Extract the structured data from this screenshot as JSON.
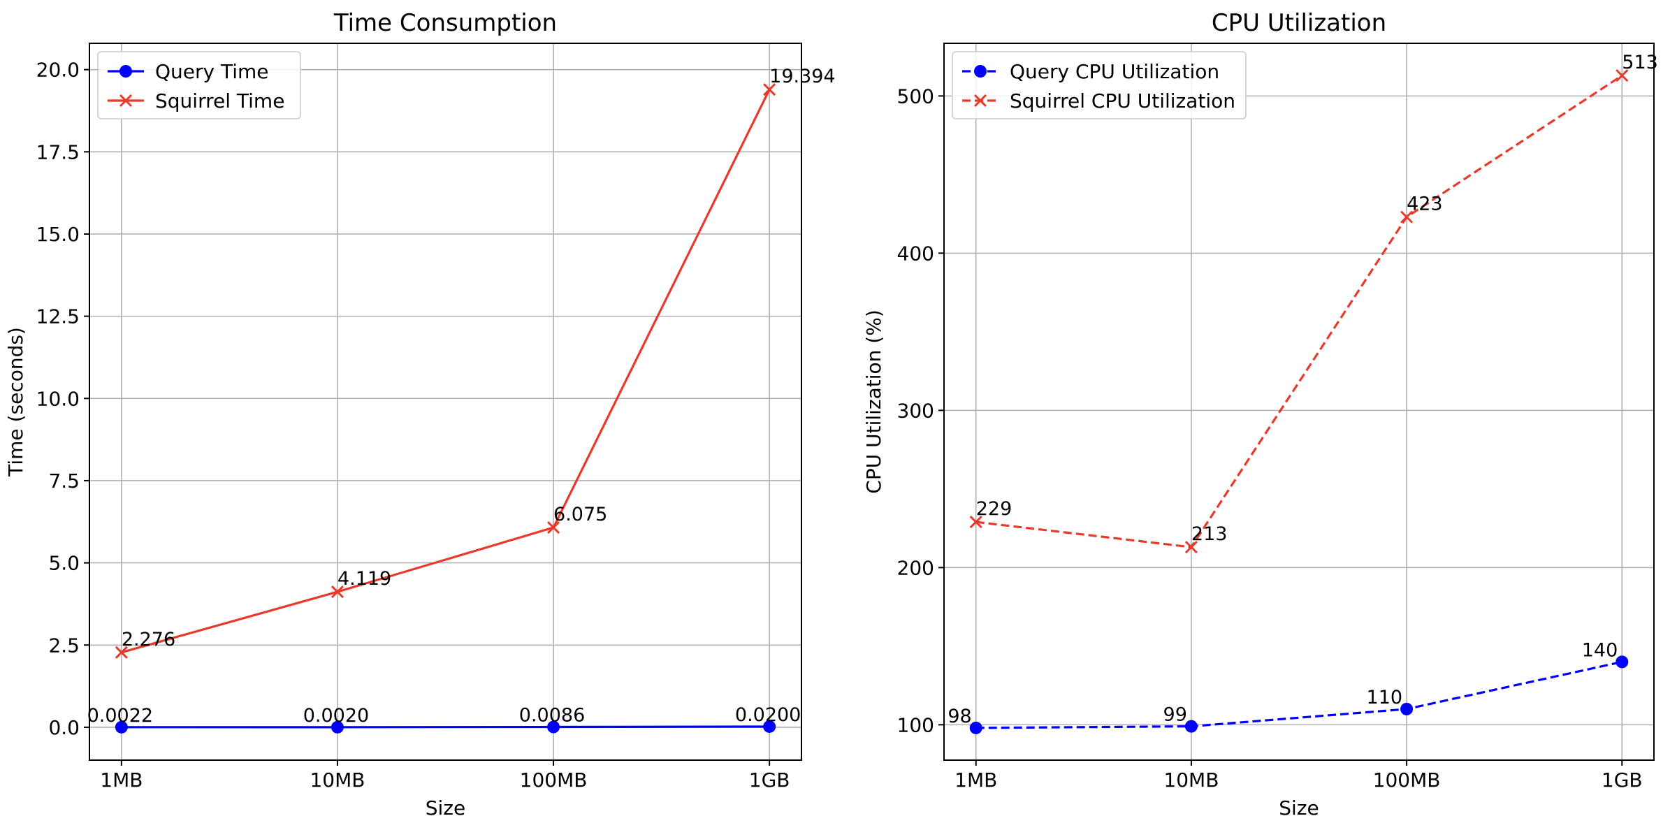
{
  "chart_data": [
    {
      "type": "line",
      "title": "Time Consumption",
      "xlabel": "Size",
      "ylabel": "Time (seconds)",
      "categories": [
        "1MB",
        "10MB",
        "100MB",
        "1GB"
      ],
      "ylim": [
        -1.0,
        20.8
      ],
      "yticks": [
        0.0,
        2.5,
        5.0,
        7.5,
        10.0,
        12.5,
        15.0,
        17.5,
        20.0
      ],
      "ytick_labels": [
        "0.0",
        "2.5",
        "5.0",
        "7.5",
        "10.0",
        "12.5",
        "15.0",
        "17.5",
        "20.0"
      ],
      "grid": true,
      "legend": "upper left",
      "series": [
        {
          "name": "Query Time",
          "values": [
            0.0022,
            0.002,
            0.0086,
            0.02
          ],
          "labels": [
            "0.0022",
            "0.0020",
            "0.0086",
            "0.0200"
          ],
          "color": "#0000ff",
          "marker": "circle",
          "linestyle": "solid"
        },
        {
          "name": "Squirrel Time",
          "values": [
            2.276,
            4.119,
            6.075,
            19.394
          ],
          "labels": [
            "2.276",
            "4.119",
            "6.075",
            "19.394"
          ],
          "color": "#e8392a",
          "marker": "x",
          "linestyle": "solid"
        }
      ]
    },
    {
      "type": "line",
      "title": "CPU Utilization",
      "xlabel": "Size",
      "ylabel": "CPU Utilization (%)",
      "categories": [
        "1MB",
        "10MB",
        "100MB",
        "1GB"
      ],
      "ylim": [
        77.5,
        533.5
      ],
      "yticks": [
        100,
        200,
        300,
        400,
        500
      ],
      "ytick_labels": [
        "100",
        "200",
        "300",
        "400",
        "500"
      ],
      "grid": true,
      "legend": "upper left",
      "series": [
        {
          "name": "Query CPU Utilization",
          "values": [
            98,
            99,
            110,
            140
          ],
          "labels": [
            "98",
            "99",
            "110",
            "140"
          ],
          "color": "#0000ff",
          "marker": "circle",
          "linestyle": "dashed"
        },
        {
          "name": "Squirrel CPU Utilization",
          "values": [
            229,
            213,
            423,
            513
          ],
          "labels": [
            "229",
            "213",
            "423",
            "513"
          ],
          "color": "#e8392a",
          "marker": "x",
          "linestyle": "dashed"
        }
      ]
    }
  ]
}
